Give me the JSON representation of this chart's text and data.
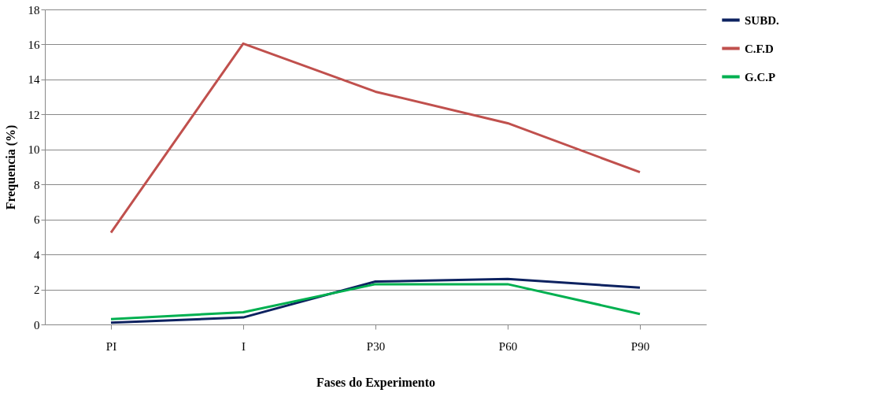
{
  "chart_data": {
    "type": "line",
    "xlabel": "Fases do Experimento",
    "ylabel": "Frequencia (%)",
    "categories": [
      "PI",
      "I",
      "P30",
      "P60",
      "P90"
    ],
    "series": [
      {
        "name": "SUBD.",
        "color": "#0d2260",
        "values": [
          0.1,
          0.4,
          2.45,
          2.6,
          2.1
        ]
      },
      {
        "name": "C.F.D",
        "color": "#c0504d",
        "values": [
          5.25,
          16.05,
          13.3,
          11.5,
          8.7
        ]
      },
      {
        "name": "G.C.P",
        "color": "#00b050",
        "values": [
          0.3,
          0.7,
          2.3,
          2.3,
          0.6
        ]
      }
    ],
    "ylim": [
      0,
      18
    ],
    "yticks": [
      0,
      2,
      4,
      6,
      8,
      10,
      12,
      14,
      16,
      18
    ],
    "grid": "y",
    "legend": "right"
  }
}
